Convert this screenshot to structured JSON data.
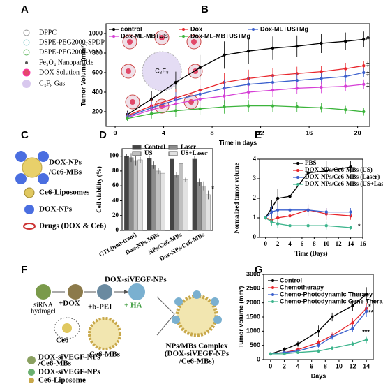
{
  "panel_labels": [
    "A",
    "B",
    "C",
    "D",
    "E",
    "F",
    "G"
  ],
  "diagram_a": {
    "legend": [
      "DPPC",
      "DSPE-PEG2000-SPDP",
      "DSPE-PEG2000-MAL",
      "Fe₃O₄ Nanoparticle",
      "DOX Solution",
      "C₃F₈ Gas"
    ],
    "center_label": "C₃F₈"
  },
  "diagram_c": {
    "label_lines": [
      "DOX-NPs",
      "/Ce6-MBs"
    ],
    "legend": [
      "Ce6-Liposomes",
      "DOX-NPs",
      "Drugs (DOX & Ce6)"
    ]
  },
  "diagram_f": {
    "top_label": "DOX-siVEGF-NPs",
    "start_lines": [
      "siRNA",
      "hydrogel"
    ],
    "steps": [
      "+DOX",
      "+b-PEI",
      "+ HA"
    ],
    "ce6": "Ce6",
    "mbs": "Ce6-MBs",
    "complex_lines": [
      "NPs/MBs Complex",
      "(DOX-siVEGF-NPs",
      "/Ce6-MBs)"
    ],
    "legend_lines": [
      "DOX-siVEGF-NPs",
      "/Ce6-MBs"
    ],
    "legend": [
      "DOX-siVEGF-NPs",
      "Ce6-Liposome"
    ]
  },
  "chart_data": [
    {
      "type": "line",
      "xlabel": "Time in days",
      "ylabel": "Tumor Volume (mm³)",
      "x": [
        1,
        3,
        5,
        7,
        9,
        11,
        13,
        15,
        17,
        19,
        20.5
      ],
      "xlim": [
        -0.75,
        21
      ],
      "xticks": [
        0,
        4,
        8,
        12,
        16,
        20
      ],
      "ylim": [
        50,
        1100
      ],
      "yticks": [
        200,
        400,
        600,
        800,
        1000
      ],
      "legend": "upper left",
      "series": [
        {
          "name": "control",
          "color": "#000000",
          "values": [
            170,
            330,
            500,
            650,
            780,
            820,
            850,
            870,
            900,
            920,
            940
          ],
          "errors": [
            40,
            80,
            110,
            130,
            140,
            130,
            120,
            110,
            100,
            90,
            80
          ]
        },
        {
          "name": "Dox",
          "color": "#e8262c",
          "values": [
            160,
            260,
            340,
            420,
            500,
            540,
            570,
            590,
            610,
            640,
            670
          ],
          "errors": [
            40,
            70,
            90,
            100,
            100,
            90,
            80,
            70,
            60,
            60,
            50
          ]
        },
        {
          "name": "Dox-ML+US+Mg",
          "color": "#3a5fcd",
          "values": [
            150,
            240,
            320,
            380,
            440,
            480,
            500,
            520,
            540,
            560,
            600
          ],
          "errors": [
            40,
            60,
            80,
            90,
            90,
            80,
            80,
            70,
            60,
            60,
            50
          ]
        },
        {
          "name": "Dox-ML-MB+US",
          "color": "#d63fd6",
          "values": [
            140,
            220,
            280,
            330,
            360,
            400,
            420,
            440,
            450,
            460,
            480
          ],
          "errors": [
            30,
            60,
            70,
            80,
            80,
            70,
            70,
            60,
            60,
            50,
            50
          ]
        },
        {
          "name": "Dox-ML-MB+US+Mg",
          "color": "#3cb43c",
          "values": [
            130,
            180,
            210,
            230,
            250,
            260,
            260,
            250,
            240,
            220,
            200
          ],
          "errors": [
            30,
            50,
            60,
            60,
            70,
            60,
            60,
            50,
            50,
            40,
            40
          ]
        }
      ],
      "annotations": [
        {
          "text": "#",
          "x": 20.7,
          "y": 950
        },
        {
          "text": "‡",
          "x": 20.7,
          "y": 680
        },
        {
          "text": "‡",
          "x": 20.7,
          "y": 590
        },
        {
          "text": "‡",
          "x": 20.7,
          "y": 470
        }
      ]
    },
    {
      "type": "bar",
      "ylabel": "Cell viability (%)",
      "categories": [
        "CTL(non-treat)",
        "Dox-NPs/MBs",
        "NPs/Ce6-MBs",
        "Dox-NPs/Ce6-MBs"
      ],
      "ylim": [
        0,
        110
      ],
      "yticks": [
        0,
        20,
        40,
        60,
        80,
        100
      ],
      "legend": "upper center",
      "series": [
        {
          "name": "Control",
          "color": "#444444",
          "values": [
            100,
            97,
            96,
            96
          ],
          "errors": [
            3,
            4,
            3,
            4
          ]
        },
        {
          "name": "Laser",
          "color": "#8c8c8c",
          "values": [
            98,
            88,
            75,
            65
          ],
          "errors": [
            6,
            5,
            4,
            5
          ]
        },
        {
          "name": "US",
          "color": "#c0c0c0",
          "values": [
            94,
            80,
            90,
            60
          ],
          "errors": [
            7,
            4,
            5,
            6
          ]
        },
        {
          "name": "US+Laser",
          "color": "#e2e2e2",
          "values": [
            95,
            77,
            68,
            48
          ],
          "errors": [
            4,
            3,
            3,
            6
          ]
        }
      ],
      "annotations": [
        {
          "text": "*",
          "x": "Dox-NPs/Ce6-MBs",
          "y": 56
        }
      ]
    },
    {
      "type": "line",
      "xlabel": "Time (Days)",
      "ylabel": "Normalized tumor volume",
      "x": [
        0,
        1,
        2,
        4,
        7,
        10,
        14
      ],
      "xlim": [
        -1,
        16
      ],
      "xticks": [
        0,
        2,
        4,
        6,
        8,
        10,
        12,
        14,
        16
      ],
      "ylim": [
        0,
        4
      ],
      "yticks": [
        0,
        1,
        2,
        3,
        4
      ],
      "legend": "upper left",
      "series": [
        {
          "name": "PBS",
          "color": "#000000",
          "values": [
            1,
            1.5,
            2,
            2.1,
            3.3,
            3.4,
            3.6
          ],
          "errors": [
            0.05,
            0.4,
            0.5,
            0.6,
            0.2,
            0.5,
            0.3
          ]
        },
        {
          "name": "DOX-NPs/Ce6-MBs (US)",
          "color": "#e8262c",
          "values": [
            1,
            0.9,
            1.0,
            1.1,
            1.4,
            1.2,
            1.1
          ],
          "errors": [
            0.05,
            0.2,
            0.3,
            0.3,
            0.3,
            0.3,
            0.2
          ]
        },
        {
          "name": "DOX-NPs/Ce6-MBs (Laser)",
          "color": "#3a5fcd",
          "values": [
            1,
            1.3,
            1.4,
            1.4,
            1.4,
            1.3,
            1.3
          ],
          "errors": [
            0.05,
            0.3,
            0.3,
            0.3,
            0.3,
            0.2,
            0.2
          ]
        },
        {
          "name": "DOX-NPs/Ce6-MBs (US+Laser)",
          "color": "#3cb48c",
          "values": [
            1,
            0.8,
            0.7,
            0.6,
            0.6,
            0.6,
            0.5
          ],
          "errors": [
            0.05,
            0.2,
            0.2,
            0.2,
            0.2,
            0.2,
            0.1
          ]
        }
      ],
      "annotations": [
        {
          "text": "*",
          "x": 15.2,
          "y": 0.55
        }
      ]
    },
    {
      "type": "line",
      "xlabel": "Days",
      "ylabel": "Tumor volume (mm³)",
      "x": [
        0,
        2,
        4,
        7,
        9,
        12,
        14
      ],
      "xlim": [
        -1,
        15
      ],
      "xticks": [
        0,
        2,
        4,
        6,
        8,
        10,
        12,
        14
      ],
      "ylim": [
        0,
        3000
      ],
      "yticks": [
        0,
        500,
        1000,
        1500,
        2000,
        2500,
        3000
      ],
      "legend": "upper left",
      "series": [
        {
          "name": "Control",
          "color": "#000000",
          "values": [
            200,
            350,
            550,
            1000,
            1500,
            1900,
            2300
          ],
          "errors": [
            50,
            80,
            100,
            200,
            150,
            200,
            250
          ]
        },
        {
          "name": "Chemotherapy",
          "color": "#e8262c",
          "values": [
            200,
            250,
            350,
            600,
            850,
            1300,
            1800
          ],
          "errors": [
            40,
            60,
            80,
            100,
            100,
            150,
            200
          ]
        },
        {
          "name": "Chemo-Photodynamic Therapy",
          "color": "#3a5fcd",
          "values": [
            200,
            250,
            300,
            500,
            800,
            1100,
            1700
          ],
          "errors": [
            40,
            50,
            60,
            80,
            100,
            120,
            200
          ]
        },
        {
          "name": "Chemo-Photodynamic Gene Therapy",
          "color": "#3cb48c",
          "values": [
            200,
            200,
            250,
            300,
            400,
            550,
            700
          ],
          "errors": [
            40,
            40,
            50,
            60,
            60,
            80,
            120
          ]
        }
      ],
      "annotations": [
        {
          "text": "*",
          "x": 14.3,
          "y": 1850
        },
        {
          "text": "**",
          "x": 14.3,
          "y": 1650
        },
        {
          "text": "***",
          "x": 13.4,
          "y": 950
        }
      ]
    }
  ]
}
